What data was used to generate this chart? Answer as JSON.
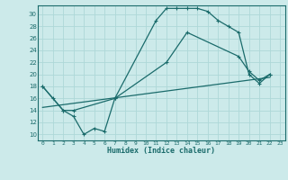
{
  "title": "",
  "xlabel": "Humidex (Indice chaleur)",
  "background_color": "#cceaea",
  "grid_color": "#add8d8",
  "line_color": "#1a6b6b",
  "xlim": [
    -0.5,
    23.5
  ],
  "ylim": [
    9,
    31.5
  ],
  "xticks": [
    0,
    1,
    2,
    3,
    4,
    5,
    6,
    7,
    8,
    9,
    10,
    11,
    12,
    13,
    14,
    15,
    16,
    17,
    18,
    19,
    20,
    21,
    22,
    23
  ],
  "yticks": [
    10,
    12,
    14,
    16,
    18,
    20,
    22,
    24,
    26,
    28,
    30
  ],
  "curve1_x": [
    0,
    1,
    2,
    3,
    4,
    5,
    6,
    7,
    11,
    12,
    13,
    14,
    15,
    16,
    17,
    18,
    19,
    20,
    21,
    22
  ],
  "curve1_y": [
    18,
    16,
    14,
    13,
    10,
    11,
    10.5,
    16,
    29,
    31,
    31,
    31,
    31,
    30.5,
    29,
    28,
    27,
    20,
    18.5,
    20
  ],
  "curve2_x": [
    0,
    2,
    3,
    7,
    12,
    14,
    19,
    20,
    21,
    22
  ],
  "curve2_y": [
    18,
    14,
    14,
    16,
    22,
    27,
    23,
    20.5,
    19,
    20
  ],
  "curve3_x": [
    0,
    22
  ],
  "curve3_y": [
    14.5,
    19.5
  ]
}
